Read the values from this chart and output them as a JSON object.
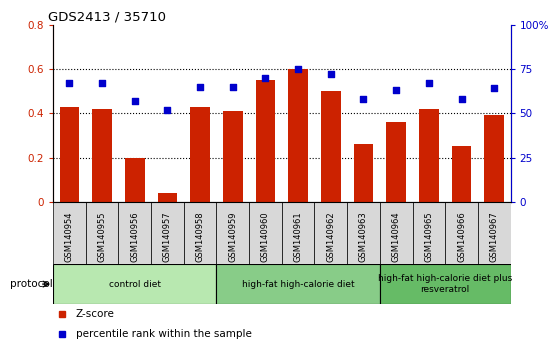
{
  "title": "GDS2413 / 35710",
  "samples": [
    "GSM140954",
    "GSM140955",
    "GSM140956",
    "GSM140957",
    "GSM140958",
    "GSM140959",
    "GSM140960",
    "GSM140961",
    "GSM140962",
    "GSM140963",
    "GSM140964",
    "GSM140965",
    "GSM140966",
    "GSM140967"
  ],
  "z_scores": [
    0.43,
    0.42,
    0.2,
    0.04,
    0.43,
    0.41,
    0.55,
    0.6,
    0.5,
    0.26,
    0.36,
    0.42,
    0.25,
    0.39
  ],
  "percentile_ranks": [
    67,
    67,
    57,
    52,
    65,
    65,
    70,
    75,
    72,
    58,
    63,
    67,
    58,
    64
  ],
  "bar_color": "#cc2200",
  "dot_color": "#0000cc",
  "ylim_left": [
    0,
    0.8
  ],
  "ylim_right": [
    0,
    100
  ],
  "yticks_left": [
    0,
    0.2,
    0.4,
    0.6,
    0.8
  ],
  "yticks_right": [
    0,
    25,
    50,
    75,
    100
  ],
  "ytick_labels_left": [
    "0",
    "0.2",
    "0.4",
    "0.6",
    "0.8"
  ],
  "ytick_labels_right": [
    "0",
    "25",
    "50",
    "75",
    "100%"
  ],
  "groups": [
    {
      "label": "control diet",
      "start": 0,
      "end": 4,
      "color": "#b8e8b0"
    },
    {
      "label": "high-fat high-calorie diet",
      "start": 5,
      "end": 9,
      "color": "#88cc88"
    },
    {
      "label": "high-fat high-calorie diet plus\nresveratrol",
      "start": 10,
      "end": 13,
      "color": "#66bb66"
    }
  ],
  "protocol_label": "protocol",
  "legend_zscore": "Z-score",
  "legend_percentile": "percentile rank within the sample",
  "tick_color_left": "#cc2200",
  "tick_color_right": "#0000cc",
  "cell_bg_color": "#d8d8d8",
  "plot_bg_color": "#ffffff"
}
